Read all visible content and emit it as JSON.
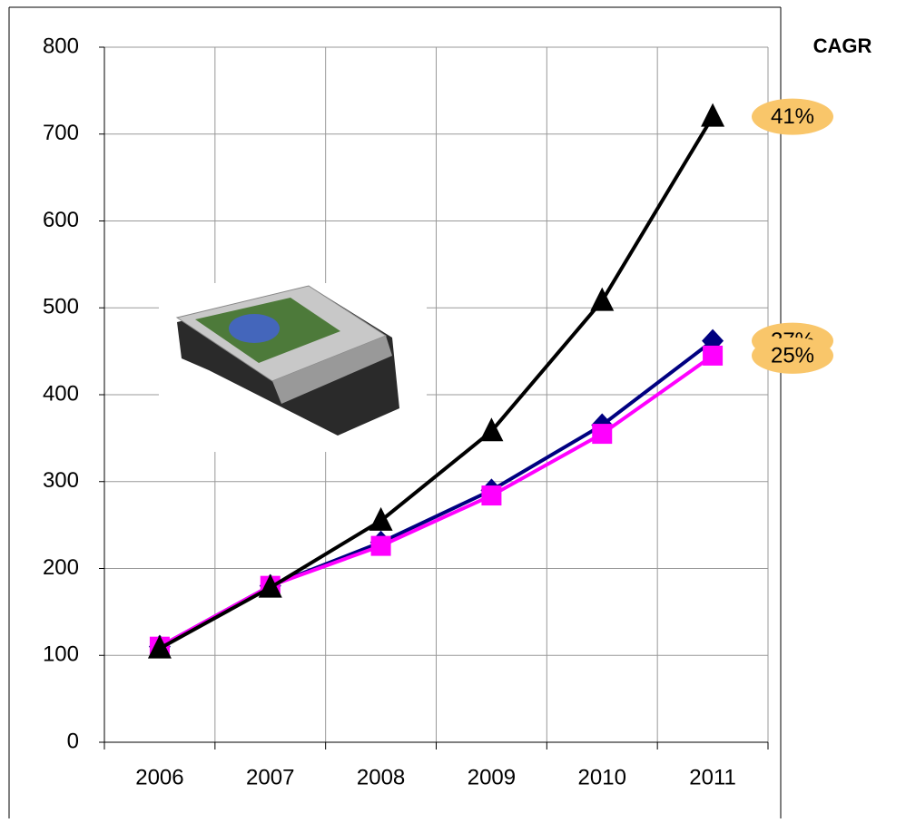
{
  "chart_data": {
    "type": "line",
    "categories": [
      "2006",
      "2007",
      "2008",
      "2009",
      "2010",
      "2011"
    ],
    "ylim": [
      0,
      800
    ],
    "yticks": [
      0,
      100,
      200,
      300,
      400,
      500,
      600,
      700,
      800
    ],
    "grid": true,
    "annotation_title": "CAGR",
    "series": [
      {
        "color": "#000080",
        "marker": "diamond",
        "values": [
          110,
          180,
          230,
          290,
          365,
          462
        ],
        "cagr": {
          "value": 27,
          "label": "27%"
        }
      },
      {
        "color": "#ff00ff",
        "marker": "square",
        "values": [
          110,
          180,
          226,
          284,
          355,
          445
        ],
        "cagr": {
          "value": 25,
          "label": "25%"
        }
      },
      {
        "color": "#000000",
        "marker": "triangle",
        "values": [
          108,
          178,
          255,
          358,
          508,
          720
        ],
        "cagr": {
          "value": 41,
          "label": "41%"
        }
      }
    ]
  }
}
